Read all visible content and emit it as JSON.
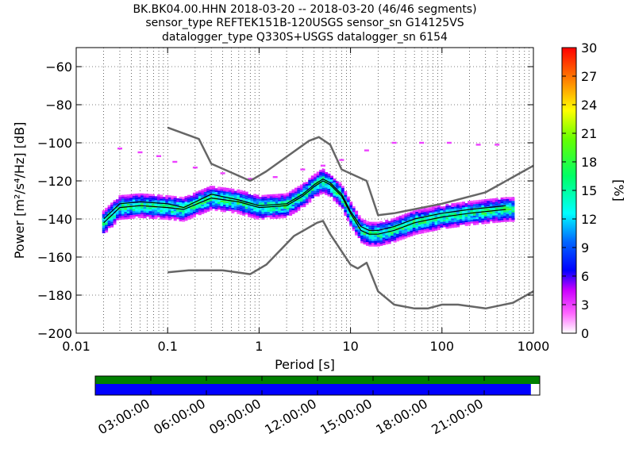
{
  "title": {
    "line1": "BK.BK04.00.HHN   2018-03-20 -- 2018-03-20  (46/46 segments)",
    "line2": "sensor_type REFTEK151B-120USGS sensor_sn G14125VS",
    "line3": "datalogger_type Q330S+USGS datalogger_sn 6154"
  },
  "chart_data": [
    {
      "type": "heatmap",
      "xlabel": "Period [s]",
      "ylabel": "Power [m²/s⁴/Hz] [dB]",
      "xscale": "log",
      "xlim": [
        0.01,
        1000
      ],
      "ylim": [
        -200,
        -50
      ],
      "x_ticks": [
        {
          "value": 0.01,
          "label": "0.01"
        },
        {
          "value": 0.1,
          "label": "0.1"
        },
        {
          "value": 1,
          "label": "1"
        },
        {
          "value": 10,
          "label": "10"
        },
        {
          "value": 100,
          "label": "100"
        },
        {
          "value": 1000,
          "label": "1000"
        }
      ],
      "y_ticks": [
        {
          "value": -60,
          "label": "−60"
        },
        {
          "value": -80,
          "label": "−80"
        },
        {
          "value": -100,
          "label": "−100"
        },
        {
          "value": -120,
          "label": "−120"
        },
        {
          "value": -140,
          "label": "−140"
        },
        {
          "value": -160,
          "label": "−160"
        },
        {
          "value": -180,
          "label": "−180"
        },
        {
          "value": -200,
          "label": "−200"
        }
      ],
      "grid": true,
      "colorbar": {
        "label": "[%]",
        "range": [
          0,
          30
        ],
        "ticks": [
          {
            "value": 0,
            "label": "0"
          },
          {
            "value": 3,
            "label": "3"
          },
          {
            "value": 6,
            "label": "6"
          },
          {
            "value": 9,
            "label": "9"
          },
          {
            "value": 12,
            "label": "12"
          },
          {
            "value": 15,
            "label": "15"
          },
          {
            "value": 18,
            "label": "18"
          },
          {
            "value": 21,
            "label": "21"
          },
          {
            "value": 24,
            "label": "24"
          },
          {
            "value": 27,
            "label": "27"
          },
          {
            "value": 30,
            "label": "30"
          }
        ]
      },
      "noise_models": {
        "high": {
          "x": [
            0.1,
            0.22,
            0.3,
            0.8,
            1.2,
            3.5,
            4.5,
            6,
            8,
            15,
            20,
            30,
            100,
            300,
            1000
          ],
          "y": [
            -92,
            -98,
            -111,
            -120,
            -115,
            -99,
            -97,
            -101,
            -114,
            -120,
            -138,
            -137,
            -132,
            -126,
            -112
          ]
        },
        "low": {
          "x": [
            0.1,
            0.17,
            0.4,
            0.8,
            1.2,
            2.4,
            4.3,
            5,
            6,
            10,
            12,
            15,
            20,
            30,
            50,
            70,
            100,
            150,
            300,
            600,
            1000
          ],
          "y": [
            -168,
            -167,
            -167,
            -169,
            -164,
            -149,
            -142,
            -141,
            -148,
            -164,
            -166,
            -163,
            -178,
            -185,
            -187,
            -187,
            -185,
            -185,
            -187,
            -184,
            -178
          ]
        }
      },
      "mean_curve": {
        "x": [
          0.02,
          0.03,
          0.05,
          0.1,
          0.15,
          0.3,
          0.6,
          1,
          2,
          3,
          4,
          5,
          6,
          8,
          10,
          13,
          16,
          20,
          30,
          50,
          100,
          200,
          500
        ],
        "y": [
          -142,
          -134,
          -133,
          -134,
          -135,
          -129,
          -131,
          -134,
          -133,
          -128,
          -123,
          -120,
          -122,
          -128,
          -137,
          -146,
          -148,
          -148,
          -146,
          -142,
          -139,
          -137,
          -135
        ]
      },
      "mode_curve": {
        "x": [
          0.02,
          0.03,
          0.05,
          0.1,
          0.15,
          0.3,
          0.6,
          1,
          2,
          3,
          4,
          5,
          6,
          8,
          10,
          13,
          16,
          20,
          30,
          50,
          100,
          200,
          500
        ],
        "y": [
          -140,
          -132,
          -131,
          -132,
          -134,
          -127,
          -130,
          -133,
          -132,
          -127,
          -122,
          -119,
          -121,
          -127,
          -136,
          -144,
          -146,
          -146,
          -144,
          -140,
          -137,
          -135,
          -133
        ]
      }
    },
    {
      "type": "bar",
      "timeline": true,
      "time_ticks": [
        "03:00:00",
        "06:00:00",
        "09:00:00",
        "12:00:00",
        "15:00:00",
        "18:00:00",
        "21:00:00"
      ],
      "data_coverage_fraction": 1.0,
      "psd_coverage_fraction": 0.98
    }
  ],
  "colors": {
    "noise_model": "#666666",
    "mean": "#000000",
    "coverage_top": "#008000",
    "coverage_bottom": "#0000ff"
  }
}
